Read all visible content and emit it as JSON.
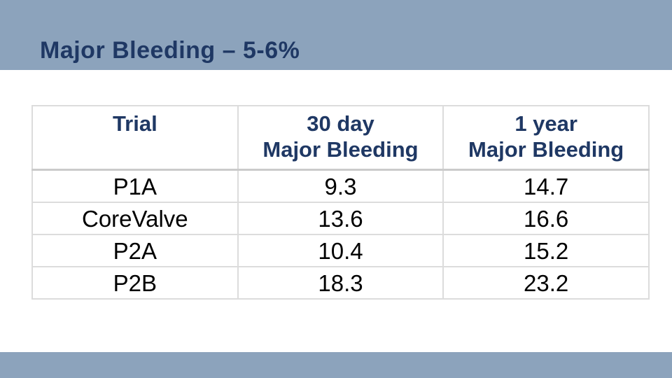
{
  "slide": {
    "title": "Major Bleeding – 5-6%"
  },
  "colors": {
    "band": "#8CA3BC",
    "heading_text": "#1F3864",
    "data_text": "#000000",
    "table_border": "#DCDCDC",
    "header_divider": "#CBCBCB",
    "background": "#FFFFFF"
  },
  "table": {
    "headers": [
      {
        "line1": "Trial",
        "line2": ""
      },
      {
        "line1": "30 day",
        "line2": "Major Bleeding"
      },
      {
        "line1": "1 year",
        "line2": "Major Bleeding"
      }
    ],
    "rows": [
      {
        "trial": "P1A",
        "day30": "9.3",
        "year1": "14.7"
      },
      {
        "trial": "CoreValve",
        "day30": "13.6",
        "year1": "16.6"
      },
      {
        "trial": "P2A",
        "day30": "10.4",
        "year1": "15.2"
      },
      {
        "trial": "P2B",
        "day30": "18.3",
        "year1": "23.2"
      }
    ]
  },
  "chart_data": {
    "type": "table",
    "title": "Major Bleeding – 5-6%",
    "columns": [
      "Trial",
      "30 day Major Bleeding",
      "1 year Major Bleeding"
    ],
    "rows": [
      [
        "P1A",
        9.3,
        14.7
      ],
      [
        "CoreValve",
        13.6,
        16.6
      ],
      [
        "P2A",
        10.4,
        15.2
      ],
      [
        "P2B",
        18.3,
        23.2
      ]
    ]
  }
}
